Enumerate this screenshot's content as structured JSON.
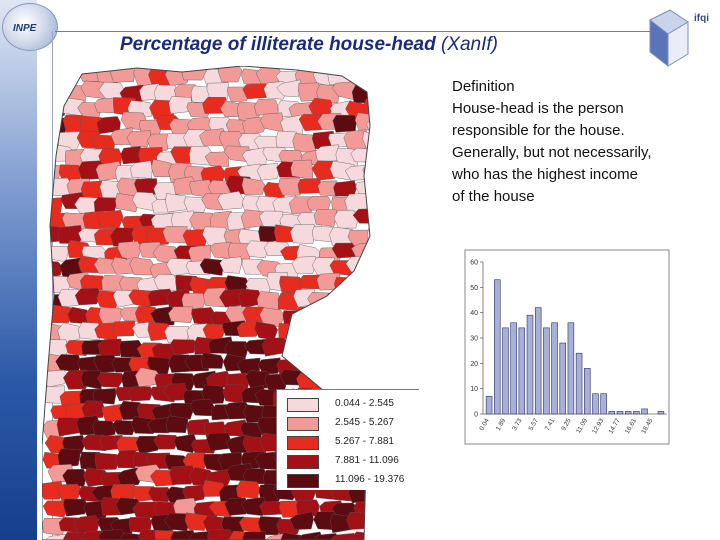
{
  "header": {
    "title": "Percentage of illiterate house-head",
    "title_suffix": "(XanIf)",
    "logo_text": "INPE",
    "corner_logo_text": "ifqi"
  },
  "definition": {
    "lines": [
      "Definition",
      "House-head is the person",
      "responsible for the house.",
      "Generally, but not necessarily,",
      "who has the highest income",
      "of the house"
    ]
  },
  "legend": {
    "items": [
      {
        "label": "0.044 - 2.545",
        "color": "#f6d9dc"
      },
      {
        "label": "2.545 - 5.267",
        "color": "#f29a98"
      },
      {
        "label": "5.267 - 7.881",
        "color": "#e82b1f"
      },
      {
        "label": "7.881 - 11.096",
        "color": "#a31016"
      },
      {
        "label": "11.096 - 19.376",
        "color": "#5c0b10"
      }
    ]
  },
  "chart_data": {
    "type": "bar",
    "title": "",
    "xlabel": "",
    "ylabel": "",
    "ylim": [
      0,
      60
    ],
    "yticks": [
      0,
      10,
      20,
      30,
      40,
      50,
      60
    ],
    "xtick_labels": [
      "0.04",
      "1.89",
      "3.73",
      "5.57",
      "7.41",
      "9.25",
      "11.09",
      "12.93",
      "14.77",
      "16.61",
      "18.45"
    ],
    "values": [
      7,
      53,
      34,
      36,
      34,
      39,
      42,
      34,
      36,
      28,
      36,
      24,
      18,
      8,
      8,
      1,
      1,
      1,
      1,
      2,
      0,
      1
    ],
    "grid": false,
    "bar_color": "#a8b0d8"
  }
}
